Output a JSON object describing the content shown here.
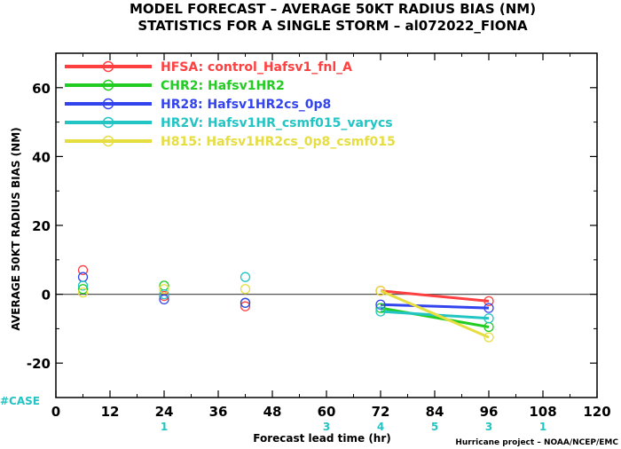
{
  "chart_data": {
    "type": "scatter",
    "title": "MODEL FORECAST – AVERAGE 50KT RADIUS BIAS (NM)",
    "subtitle": "STATISTICS FOR A SINGLE STORM – al072022_FIONA",
    "xlabel": "Forecast lead time (hr)",
    "ylabel": "AVERAGE 50KT RADIUS BIAS (NM)",
    "xlim": [
      0,
      120
    ],
    "ylim": [
      -30,
      70
    ],
    "xticks": [
      0,
      12,
      24,
      36,
      48,
      60,
      72,
      84,
      96,
      108,
      120
    ],
    "yticks": [
      -20,
      0,
      20,
      40,
      60
    ],
    "grid": false,
    "legend_position": "top-left",
    "reference_line_y": 0,
    "series": [
      {
        "name": "HFSA: control_Hafsv1_fnl_A",
        "color": "#ff4040",
        "x": [
          6,
          24,
          42,
          72,
          96
        ],
        "y": [
          7,
          -0.5,
          -3.5,
          1,
          -2
        ]
      },
      {
        "name": "CHR2: Hafsv1HR2",
        "color": "#22cc22",
        "x": [
          6,
          24,
          42,
          72,
          96
        ],
        "y": [
          1.5,
          2.5,
          -2.5,
          -4,
          -9.5
        ]
      },
      {
        "name": "HR28: Hafsv1HR2cs_0p8",
        "color": "#3344ee",
        "x": [
          6,
          24,
          42,
          72,
          96
        ],
        "y": [
          5,
          -1.5,
          -2.5,
          -3,
          -4
        ]
      },
      {
        "name": "HR2V: Hafsv1HR_csmf015_varycs",
        "color": "#22c4c4",
        "x": [
          6,
          24,
          42,
          72,
          96
        ],
        "y": [
          2.5,
          0,
          5,
          -5,
          -7
        ]
      },
      {
        "name": "H815: Hafsv1HR2cs_0p8_csmf015",
        "color": "#e6dd40",
        "x": [
          6,
          24,
          42,
          72,
          96
        ],
        "y": [
          0.5,
          1.5,
          1.5,
          1,
          -12.5
        ]
      }
    ],
    "cases_label": "#CASE",
    "cases_color": "#22c4c4",
    "cases": [
      {
        "x": 24,
        "n": "1"
      },
      {
        "x": 60,
        "n": "3"
      },
      {
        "x": 72,
        "n": "4"
      },
      {
        "x": 84,
        "n": "5"
      },
      {
        "x": 96,
        "n": "3"
      },
      {
        "x": 108,
        "n": "1"
      }
    ],
    "credit": "Hurricane project – NOAA/NCEP/EMC"
  }
}
